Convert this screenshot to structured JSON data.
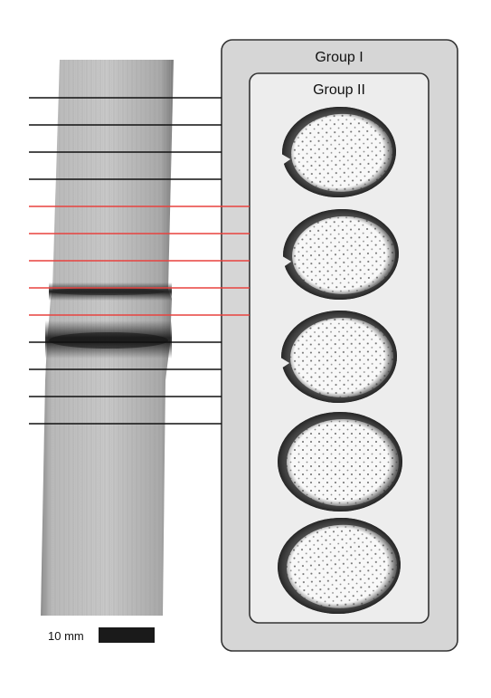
{
  "group_outer": {
    "label": "Group I"
  },
  "group_inner": {
    "label": "Group II"
  },
  "scale_bar": {
    "label": "10 mm"
  },
  "colors": {
    "cut_line_black": "#111111",
    "cut_line_red": "#e8423f",
    "group_outer_fill": "#d6d6d6",
    "group_inner_fill": "#ededed",
    "box_stroke": "#333333",
    "scale_bar": "#1a1a1a"
  },
  "cut_lines": [
    {
      "id": 1,
      "color": "black",
      "group": "I"
    },
    {
      "id": 2,
      "color": "black",
      "group": "I"
    },
    {
      "id": 3,
      "color": "black",
      "group": "I"
    },
    {
      "id": 4,
      "color": "black",
      "group": "I"
    },
    {
      "id": 5,
      "color": "red",
      "group": "II"
    },
    {
      "id": 6,
      "color": "red",
      "group": "II"
    },
    {
      "id": 7,
      "color": "red",
      "group": "II"
    },
    {
      "id": 8,
      "color": "red",
      "group": "II"
    },
    {
      "id": 9,
      "color": "red",
      "group": "II"
    },
    {
      "id": 10,
      "color": "black",
      "group": "I"
    },
    {
      "id": 11,
      "color": "black",
      "group": "I"
    },
    {
      "id": 12,
      "color": "black",
      "group": "I"
    },
    {
      "id": 13,
      "color": "black",
      "group": "I"
    }
  ],
  "cross_sections": [
    {
      "id": 1,
      "notch": true
    },
    {
      "id": 2,
      "notch": true
    },
    {
      "id": 3,
      "notch": true
    },
    {
      "id": 4,
      "notch": false
    },
    {
      "id": 5,
      "notch": false
    }
  ]
}
